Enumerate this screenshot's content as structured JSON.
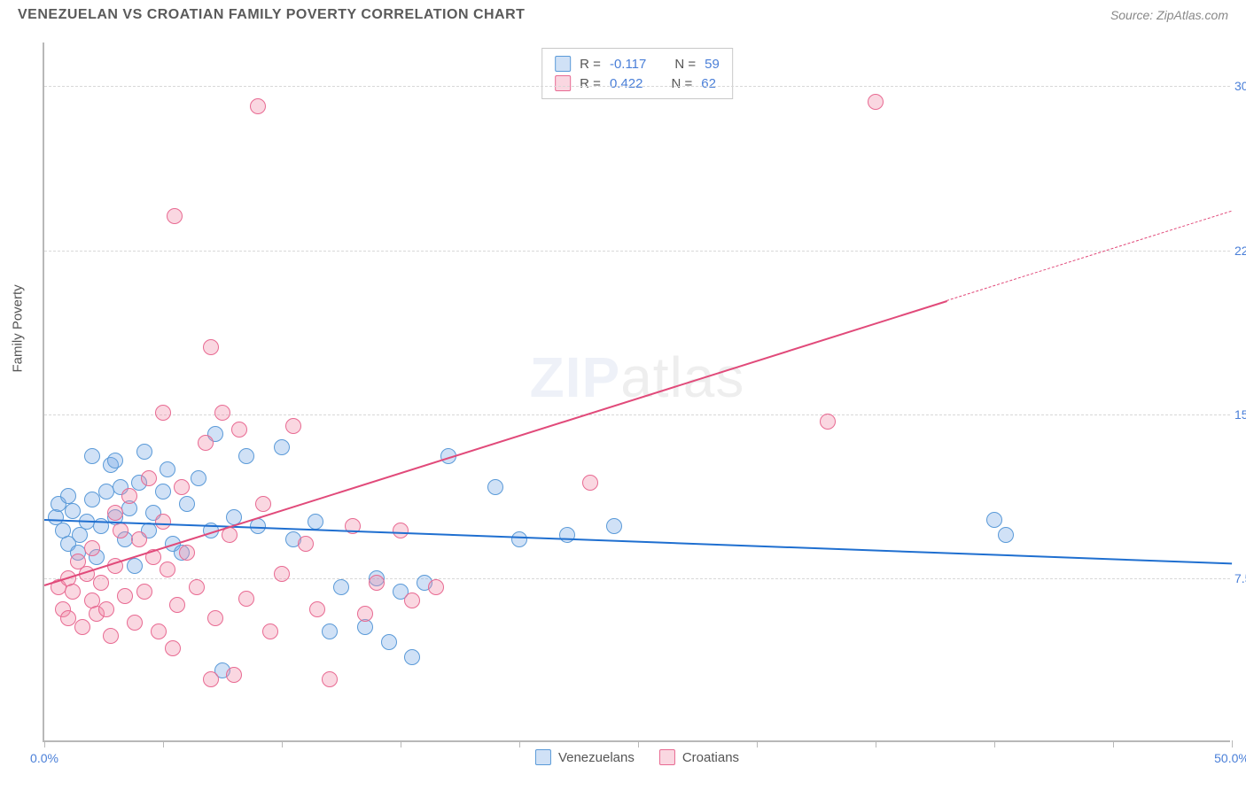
{
  "title": "VENEZUELAN VS CROATIAN FAMILY POVERTY CORRELATION CHART",
  "source": "Source: ZipAtlas.com",
  "ylabel": "Family Poverty",
  "watermark": {
    "a": "ZIP",
    "b": "atlas"
  },
  "chart": {
    "type": "scatter",
    "xlim": [
      0,
      50
    ],
    "ylim": [
      0,
      32
    ],
    "x_ticks": [
      0,
      5,
      10,
      15,
      20,
      25,
      30,
      35,
      40,
      45,
      50
    ],
    "x_tick_labels": {
      "0": "0.0%",
      "50": "50.0%"
    },
    "y_ticks": [
      7.5,
      15.0,
      22.5,
      30.0
    ],
    "y_tick_labels": [
      "7.5%",
      "15.0%",
      "22.5%",
      "30.0%"
    ],
    "background_color": "#ffffff",
    "grid_color": "#d8d8d8",
    "axis_color": "#b8b8b8",
    "tick_label_color": "#4a7fd8",
    "series": [
      {
        "name": "Venezuelans",
        "fill": "rgba(120,170,230,0.35)",
        "stroke": "#5a9ad8",
        "marker_r": 9,
        "trend_color": "#1f6fd0",
        "trend": {
          "x1": 0,
          "y1": 10.2,
          "x2": 50,
          "y2": 8.2,
          "width": 2.5
        },
        "r": "-0.117",
        "n": "59",
        "points": [
          [
            0.5,
            10.2
          ],
          [
            0.6,
            10.8
          ],
          [
            0.8,
            9.6
          ],
          [
            1.0,
            11.2
          ],
          [
            1.0,
            9.0
          ],
          [
            1.2,
            10.5
          ],
          [
            1.4,
            8.6
          ],
          [
            1.5,
            9.4
          ],
          [
            1.8,
            10.0
          ],
          [
            2.0,
            11.0
          ],
          [
            2.0,
            13.0
          ],
          [
            2.2,
            8.4
          ],
          [
            2.4,
            9.8
          ],
          [
            2.6,
            11.4
          ],
          [
            2.8,
            12.6
          ],
          [
            3.0,
            10.2
          ],
          [
            3.0,
            12.8
          ],
          [
            3.2,
            11.6
          ],
          [
            3.4,
            9.2
          ],
          [
            3.6,
            10.6
          ],
          [
            3.8,
            8.0
          ],
          [
            4.0,
            11.8
          ],
          [
            4.2,
            13.2
          ],
          [
            4.4,
            9.6
          ],
          [
            4.6,
            10.4
          ],
          [
            5.0,
            11.4
          ],
          [
            5.2,
            12.4
          ],
          [
            5.4,
            9.0
          ],
          [
            5.8,
            8.6
          ],
          [
            6.0,
            10.8
          ],
          [
            6.5,
            12.0
          ],
          [
            7.0,
            9.6
          ],
          [
            7.2,
            14.0
          ],
          [
            7.5,
            3.2
          ],
          [
            8.0,
            10.2
          ],
          [
            8.5,
            13.0
          ],
          [
            9.0,
            9.8
          ],
          [
            10.0,
            13.4
          ],
          [
            10.5,
            9.2
          ],
          [
            11.4,
            10.0
          ],
          [
            12.0,
            5.0
          ],
          [
            12.5,
            7.0
          ],
          [
            13.5,
            5.2
          ],
          [
            14.0,
            7.4
          ],
          [
            15.0,
            6.8
          ],
          [
            14.5,
            4.5
          ],
          [
            15.5,
            3.8
          ],
          [
            16.0,
            7.2
          ],
          [
            17.0,
            13.0
          ],
          [
            19.0,
            11.6
          ],
          [
            20.0,
            9.2
          ],
          [
            22.0,
            9.4
          ],
          [
            24.0,
            9.8
          ],
          [
            40.0,
            10.1
          ],
          [
            40.5,
            9.4
          ]
        ]
      },
      {
        "name": "Croatians",
        "fill": "rgba(240,140,170,0.35)",
        "stroke": "#e86a92",
        "marker_r": 9,
        "trend_color": "#e14a7a",
        "trend": {
          "x1": 0,
          "y1": 7.2,
          "x2": 38,
          "y2": 20.2,
          "width": 2.5
        },
        "trend_dashed": {
          "x1": 38,
          "y1": 20.2,
          "x2": 50,
          "y2": 24.3
        },
        "r": "0.422",
        "n": "62",
        "points": [
          [
            0.6,
            7.0
          ],
          [
            0.8,
            6.0
          ],
          [
            1.0,
            7.4
          ],
          [
            1.0,
            5.6
          ],
          [
            1.2,
            6.8
          ],
          [
            1.4,
            8.2
          ],
          [
            1.6,
            5.2
          ],
          [
            1.8,
            7.6
          ],
          [
            2.0,
            6.4
          ],
          [
            2.0,
            8.8
          ],
          [
            2.2,
            5.8
          ],
          [
            2.4,
            7.2
          ],
          [
            2.6,
            6.0
          ],
          [
            2.8,
            4.8
          ],
          [
            3.0,
            8.0
          ],
          [
            3.0,
            10.4
          ],
          [
            3.2,
            9.6
          ],
          [
            3.4,
            6.6
          ],
          [
            3.6,
            11.2
          ],
          [
            3.8,
            5.4
          ],
          [
            4.0,
            9.2
          ],
          [
            4.2,
            6.8
          ],
          [
            4.4,
            12.0
          ],
          [
            4.6,
            8.4
          ],
          [
            4.8,
            5.0
          ],
          [
            5.0,
            10.0
          ],
          [
            5.0,
            15.0
          ],
          [
            5.2,
            7.8
          ],
          [
            5.4,
            4.2
          ],
          [
            5.6,
            6.2
          ],
          [
            5.8,
            11.6
          ],
          [
            6.0,
            8.6
          ],
          [
            5.5,
            24.0
          ],
          [
            6.4,
            7.0
          ],
          [
            6.8,
            13.6
          ],
          [
            7.0,
            18.0
          ],
          [
            7.2,
            5.6
          ],
          [
            7.5,
            15.0
          ],
          [
            7.8,
            9.4
          ],
          [
            8.0,
            3.0
          ],
          [
            8.2,
            14.2
          ],
          [
            8.5,
            6.5
          ],
          [
            7.0,
            2.8
          ],
          [
            9.0,
            29.0
          ],
          [
            9.2,
            10.8
          ],
          [
            9.5,
            5.0
          ],
          [
            10.0,
            7.6
          ],
          [
            10.5,
            14.4
          ],
          [
            11.0,
            9.0
          ],
          [
            11.5,
            6.0
          ],
          [
            12.0,
            2.8
          ],
          [
            13.0,
            9.8
          ],
          [
            13.5,
            5.8
          ],
          [
            14.0,
            7.2
          ],
          [
            15.0,
            9.6
          ],
          [
            15.5,
            6.4
          ],
          [
            16.5,
            7.0
          ],
          [
            23.0,
            11.8
          ],
          [
            33.0,
            14.6
          ],
          [
            35.0,
            29.2
          ]
        ]
      }
    ]
  },
  "legend_top_labels": {
    "r": "R =",
    "n": "N ="
  },
  "legend_bottom": [
    "Venezuelans",
    "Croatians"
  ]
}
